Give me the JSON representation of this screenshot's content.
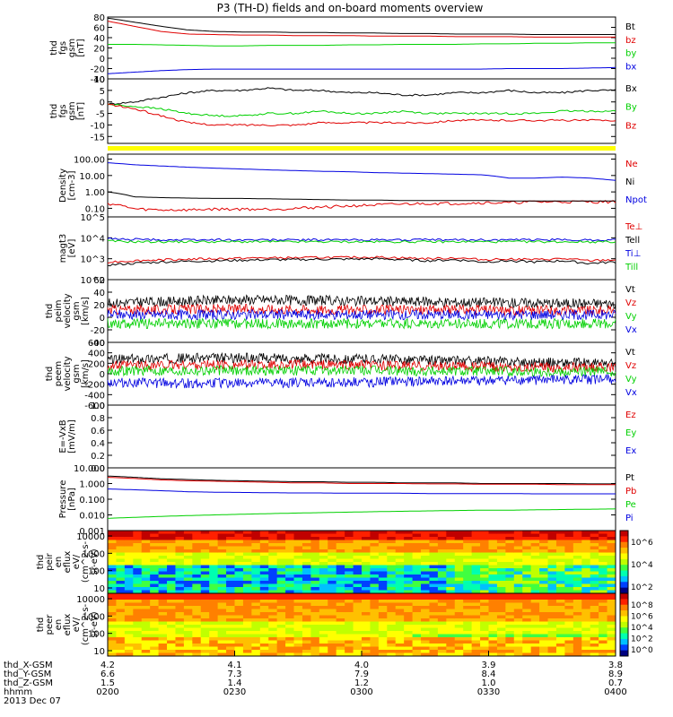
{
  "title": "P3 (TH-D) fields and on-board moments overview",
  "colors": {
    "black": "#000000",
    "red": "#e00000",
    "green": "#00d000",
    "blue": "#0000e0",
    "yellow": "#ffff00"
  },
  "chart_data": [
    {
      "type": "line",
      "id": "fgs_btot",
      "ylabel_lines": [
        "thd",
        "fgs",
        "gsm",
        "[nT]"
      ],
      "yticks": [
        80,
        60,
        40,
        20,
        0,
        -20,
        -40
      ],
      "ylim": [
        -40,
        80
      ],
      "series": [
        {
          "name": "Bt",
          "color": "black",
          "values": [
            78,
            70,
            62,
            55,
            52,
            51,
            51,
            50,
            50,
            49,
            49,
            48,
            48,
            47,
            47,
            47,
            46,
            46,
            46,
            46
          ]
        },
        {
          "name": "bz",
          "color": "red",
          "values": [
            72,
            62,
            52,
            47,
            46,
            45,
            45,
            44,
            44,
            44,
            43,
            43,
            43,
            42,
            42,
            42,
            41,
            41,
            41,
            41
          ]
        },
        {
          "name": "by",
          "color": "green",
          "values": [
            27,
            27,
            26,
            25,
            24,
            24,
            25,
            25,
            25,
            26,
            26,
            27,
            27,
            27,
            28,
            28,
            29,
            29,
            30,
            30
          ]
        },
        {
          "name": "bx",
          "color": "blue",
          "values": [
            -30,
            -27,
            -24,
            -22,
            -21,
            -21,
            -21,
            -21,
            -21,
            -21,
            -21,
            -21,
            -21,
            -21,
            -21,
            -20,
            -20,
            -20,
            -19,
            -18
          ]
        }
      ]
    },
    {
      "type": "line",
      "id": "fgs_comp",
      "ylabel_lines": [
        "thd",
        "fgs",
        "gsm",
        "[nT]"
      ],
      "yticks": [
        10,
        5,
        0,
        -5,
        -10,
        -15
      ],
      "ylim": [
        -18,
        10
      ],
      "series": [
        {
          "name": "Bx",
          "color": "black",
          "values": [
            -1,
            0,
            2,
            4,
            5,
            5,
            6,
            5,
            5,
            4,
            4,
            3,
            3,
            4,
            4,
            5,
            4,
            4,
            5,
            5
          ]
        },
        {
          "name": "By",
          "color": "green",
          "values": [
            -1,
            -2,
            -3,
            -5,
            -6,
            -6,
            -5,
            -5,
            -4,
            -5,
            -5,
            -4,
            -5,
            -5,
            -5,
            -5,
            -5,
            -4,
            -4,
            -4
          ]
        },
        {
          "name": "Bz",
          "color": "red",
          "values": [
            -1,
            -3,
            -6,
            -9,
            -10,
            -10,
            -10,
            -10,
            -9,
            -9,
            -9,
            -9,
            -9,
            -8,
            -8,
            -8,
            -8,
            -8,
            -8,
            -8
          ]
        }
      ]
    },
    {
      "type": "line",
      "id": "density",
      "ylabel_lines": [
        "Density",
        "[cm-3]"
      ],
      "log": true,
      "yticks": [
        "100.00",
        "10.00",
        "1.00",
        "0.10"
      ],
      "ylim": [
        0.03,
        200
      ],
      "series": [
        {
          "name": "Ne",
          "color": "red",
          "values": [
            0.2,
            0.09,
            0.08,
            0.08,
            0.09,
            0.09,
            0.09,
            0.1,
            0.12,
            0.14,
            0.16,
            0.18,
            0.2,
            0.2,
            0.22,
            0.22,
            0.25,
            0.25,
            0.25,
            0.25
          ]
        },
        {
          "name": "Ni",
          "color": "black",
          "values": [
            1.0,
            0.5,
            0.45,
            0.42,
            0.4,
            0.4,
            0.38,
            0.36,
            0.34,
            0.32,
            0.32,
            0.3,
            0.3,
            0.3,
            0.3,
            0.28,
            0.28,
            0.28,
            0.28,
            0.28
          ]
        },
        {
          "name": "Npot",
          "color": "blue",
          "values": [
            60,
            45,
            38,
            32,
            28,
            25,
            22,
            20,
            18,
            17,
            15,
            14,
            13,
            12,
            11,
            7,
            7,
            8,
            7,
            5
          ]
        }
      ]
    },
    {
      "type": "line",
      "id": "temp",
      "ylabel_lines": [
        "magt3",
        "[eV]"
      ],
      "log": true,
      "ytick_labels": [
        "10^5",
        "10^4",
        "10^3",
        "10^2"
      ],
      "yticks": [
        100000,
        10000,
        1000,
        100
      ],
      "ylim": [
        100,
        100000
      ],
      "series": [
        {
          "name": "Te⊥",
          "color": "red",
          "values": [
            700,
            800,
            900,
            950,
            1000,
            1050,
            1100,
            1100,
            1150,
            1150,
            1200,
            1100,
            1000,
            1100,
            900,
            1000,
            900,
            1000,
            800,
            900
          ]
        },
        {
          "name": "Tell",
          "color": "black",
          "values": [
            500,
            600,
            700,
            750,
            800,
            850,
            900,
            900,
            950,
            950,
            1000,
            900,
            800,
            900,
            700,
            800,
            700,
            800,
            600,
            700
          ]
        },
        {
          "name": "Ti⊥",
          "color": "blue",
          "values": [
            9000,
            8500,
            8000,
            8000,
            8000,
            8000,
            8000,
            8000,
            8000,
            8000,
            8000,
            8000,
            8000,
            8000,
            8000,
            8000,
            8000,
            8000,
            8000,
            8000
          ]
        },
        {
          "name": "Till",
          "color": "green",
          "values": [
            7000,
            6500,
            6500,
            6500,
            6500,
            6500,
            6500,
            6500,
            6500,
            6500,
            6500,
            6500,
            6500,
            6500,
            6500,
            6500,
            6500,
            6500,
            6500,
            6500
          ]
        }
      ]
    },
    {
      "type": "line",
      "id": "peim_vel",
      "ylabel_lines": [
        "thd",
        "peim",
        "velocity",
        "gsm",
        "[km/s]"
      ],
      "yticks": [
        60,
        40,
        20,
        0,
        -20,
        -40
      ],
      "ylim": [
        -40,
        60
      ],
      "series": [
        {
          "name": "Vt",
          "color": "black",
          "values": [
            22,
            24,
            25,
            26,
            27,
            28,
            28,
            27,
            27,
            26,
            26,
            25,
            25,
            24,
            24,
            23,
            23,
            22,
            22,
            22
          ]
        },
        {
          "name": "Vz",
          "color": "red",
          "values": [
            12,
            12,
            12,
            13,
            13,
            13,
            13,
            13,
            12,
            12,
            12,
            12,
            12,
            12,
            12,
            11,
            11,
            11,
            11,
            11
          ]
        },
        {
          "name": "Vy",
          "color": "green",
          "values": [
            -10,
            -10,
            -10,
            -10,
            -10,
            -10,
            -10,
            -10,
            -10,
            -10,
            -10,
            -10,
            -10,
            -10,
            -10,
            -10,
            -10,
            -10,
            -10,
            -10
          ]
        },
        {
          "name": "Vx",
          "color": "blue",
          "values": [
            4,
            4,
            4,
            4,
            4,
            4,
            4,
            4,
            4,
            4,
            4,
            4,
            4,
            4,
            4,
            4,
            4,
            4,
            4,
            4
          ]
        }
      ]
    },
    {
      "type": "line",
      "id": "peem_vel",
      "ylabel_lines": [
        "thd",
        "peem",
        "velocity",
        "gsm",
        "[km/s]"
      ],
      "yticks": [
        600,
        400,
        200,
        0,
        -200,
        -400,
        -600
      ],
      "ylim": [
        -600,
        600
      ],
      "series": [
        {
          "name": "Vt",
          "color": "black",
          "values": [
            270,
            280,
            290,
            300,
            300,
            300,
            300,
            290,
            290,
            280,
            280,
            270,
            260,
            250,
            240,
            230,
            220,
            210,
            200,
            190
          ]
        },
        {
          "name": "Vz",
          "color": "red",
          "values": [
            150,
            160,
            160,
            170,
            170,
            170,
            170,
            170,
            170,
            160,
            160,
            150,
            150,
            140,
            140,
            130,
            130,
            120,
            120,
            110
          ]
        },
        {
          "name": "Vy",
          "color": "green",
          "values": [
            50,
            60,
            60,
            60,
            60,
            60,
            60,
            60,
            60,
            60,
            60,
            50,
            50,
            50,
            50,
            40,
            40,
            40,
            40,
            40
          ]
        },
        {
          "name": "Vx",
          "color": "blue",
          "values": [
            -160,
            -170,
            -180,
            -180,
            -180,
            -180,
            -180,
            -170,
            -170,
            -160,
            -160,
            -150,
            -150,
            -140,
            -140,
            -130,
            -120,
            -120,
            -110,
            -100
          ]
        }
      ]
    },
    {
      "type": "line",
      "id": "efield",
      "ylabel_lines": [
        "E=-VxB",
        "[mV/m]"
      ],
      "yticks": [
        "1.0",
        "0.8",
        "0.6",
        "0.4",
        "0.2",
        "0.0"
      ],
      "ylim": [
        0,
        1
      ],
      "series": [
        {
          "name": "Ez",
          "color": "red",
          "values": []
        },
        {
          "name": "Ey",
          "color": "green",
          "values": []
        },
        {
          "name": "Ex",
          "color": "blue",
          "values": []
        }
      ]
    },
    {
      "type": "line",
      "id": "pressure",
      "ylabel_lines": [
        "Pressure",
        "[nPa]"
      ],
      "log": true,
      "yticks": [
        "10.000",
        "1.000",
        "0.100",
        "0.010",
        "0.001"
      ],
      "ylim": [
        0.001,
        10
      ],
      "series": [
        {
          "name": "Pt",
          "color": "black",
          "values": [
            3.0,
            2.5,
            2.0,
            1.8,
            1.6,
            1.5,
            1.4,
            1.3,
            1.3,
            1.2,
            1.2,
            1.1,
            1.1,
            1.1,
            1.0,
            1.0,
            1.0,
            1.0,
            0.95,
            0.95
          ]
        },
        {
          "name": "Pb",
          "color": "red",
          "values": [
            2.5,
            2.1,
            1.7,
            1.5,
            1.4,
            1.3,
            1.2,
            1.1,
            1.1,
            1.0,
            1.0,
            1.0,
            0.95,
            0.95,
            0.9,
            0.9,
            0.9,
            0.85,
            0.85,
            0.85
          ]
        },
        {
          "name": "Pe",
          "color": "green",
          "values": [
            0.006,
            0.007,
            0.008,
            0.009,
            0.01,
            0.011,
            0.012,
            0.013,
            0.014,
            0.015,
            0.016,
            0.017,
            0.018,
            0.019,
            0.02,
            0.02,
            0.021,
            0.022,
            0.023,
            0.024
          ]
        },
        {
          "name": "Pi",
          "color": "blue",
          "values": [
            0.45,
            0.4,
            0.35,
            0.3,
            0.28,
            0.27,
            0.26,
            0.25,
            0.25,
            0.24,
            0.24,
            0.24,
            0.23,
            0.23,
            0.23,
            0.23,
            0.22,
            0.22,
            0.22,
            0.22
          ]
        }
      ]
    },
    {
      "type": "heatmap",
      "id": "peir",
      "ylabel_lines": [
        "thd",
        "peir",
        "en",
        "eflux",
        "eV/",
        "(cm^2-s-",
        "sr-eV)"
      ],
      "yticks": [
        "10000",
        "1000",
        "100",
        "10"
      ],
      "cbar_ticks": [
        "10^6",
        "10^4",
        "10^2"
      ]
    },
    {
      "type": "heatmap",
      "id": "peer",
      "ylabel_lines": [
        "thd",
        "peer",
        "en",
        "eflux",
        "eV/",
        "(cm^2-s-",
        "sr-eV)"
      ],
      "yticks": [
        "10000",
        "1000",
        "100",
        "10"
      ],
      "cbar_ticks": [
        "10^8",
        "10^6",
        "10^4",
        "10^2",
        "10^0"
      ]
    }
  ],
  "xaxis": {
    "rows": [
      {
        "label": "thd_X-GSM",
        "values": [
          "4.2",
          "4.1",
          "4.0",
          "3.9",
          "3.8"
        ]
      },
      {
        "label": "thd_Y-GSM",
        "values": [
          "6.6",
          "7.3",
          "7.9",
          "8.4",
          "8.9"
        ]
      },
      {
        "label": "thd_Z-GSM",
        "values": [
          "1.5",
          "1.4",
          "1.2",
          "1.0",
          "0.7"
        ]
      },
      {
        "label": "hhmm",
        "values": [
          "0200",
          "0230",
          "0300",
          "0330",
          "0400"
        ]
      }
    ],
    "date": "2013 Dec 07"
  }
}
